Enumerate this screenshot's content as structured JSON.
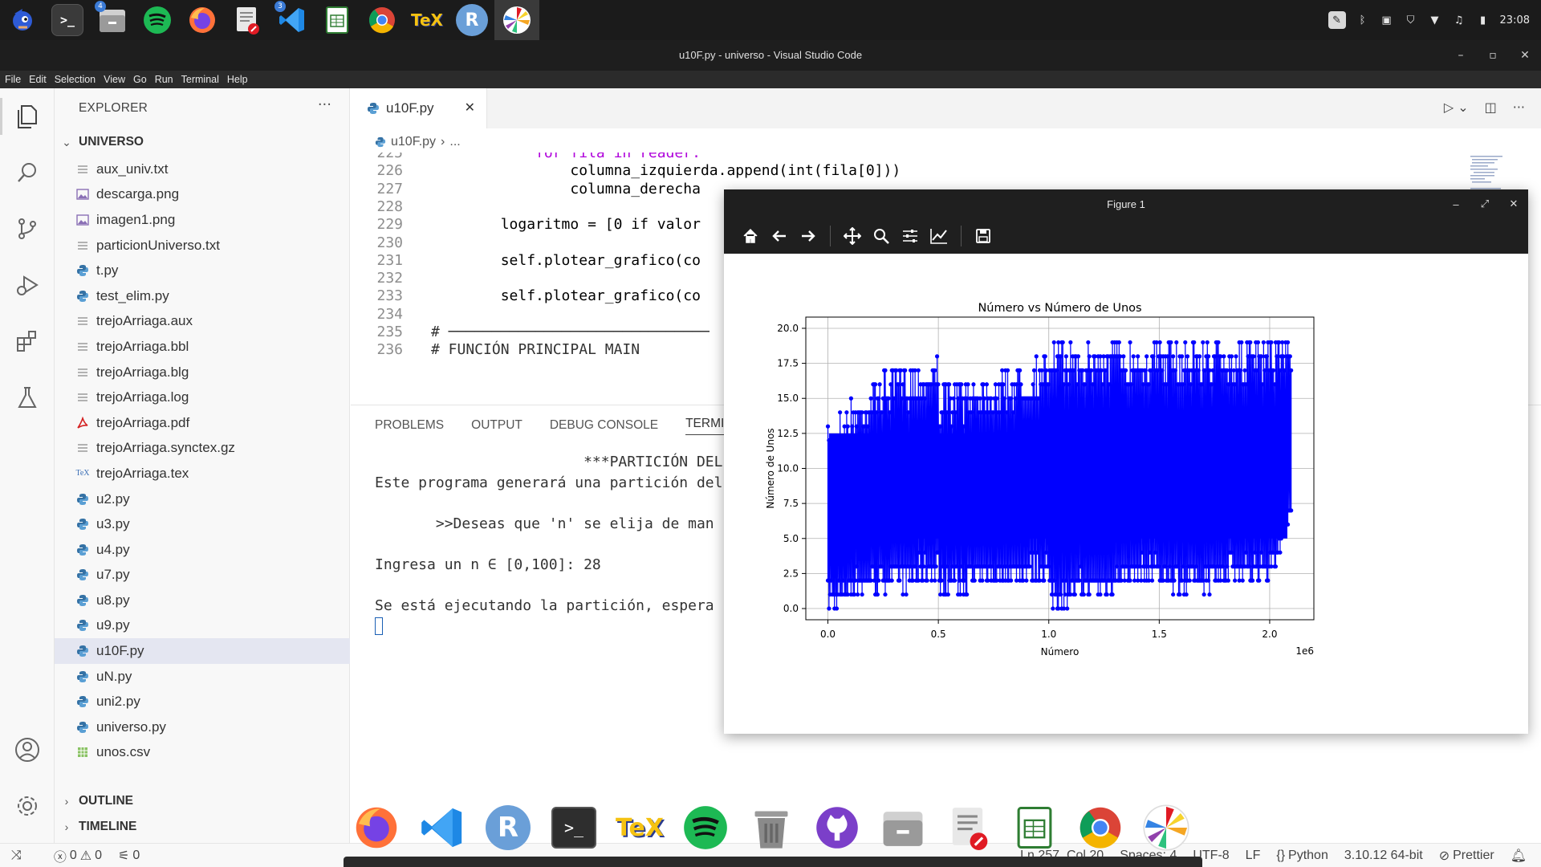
{
  "topbar": {
    "apps": [
      {
        "name": "sonic",
        "label": ""
      },
      {
        "name": "terminal",
        "label": ">_"
      },
      {
        "name": "files",
        "label": "",
        "badge": "4"
      },
      {
        "name": "spotify",
        "label": ""
      },
      {
        "name": "firefox",
        "label": ""
      },
      {
        "name": "text-editor",
        "label": ""
      },
      {
        "name": "vscode",
        "label": "",
        "badge": "3"
      },
      {
        "name": "spreadsheet",
        "label": ""
      },
      {
        "name": "chrome",
        "label": ""
      },
      {
        "name": "texmaker",
        "label": "TeX"
      },
      {
        "name": "r",
        "label": "R"
      },
      {
        "name": "pinwheel",
        "label": ""
      }
    ],
    "clock": "23:08"
  },
  "window": {
    "title": "u10F.py - universo - Visual Studio Code"
  },
  "menu": [
    "File",
    "Edit",
    "Selection",
    "View",
    "Go",
    "Run",
    "Terminal",
    "Help"
  ],
  "explorer": {
    "title": "EXPLORER",
    "folder": "UNIVERSO",
    "files": [
      {
        "name": "aux_univ.txt",
        "type": "txt"
      },
      {
        "name": "descarga.png",
        "type": "img"
      },
      {
        "name": "imagen1.png",
        "type": "img"
      },
      {
        "name": "particionUniverso.txt",
        "type": "txt"
      },
      {
        "name": "t.py",
        "type": "py"
      },
      {
        "name": "test_elim.py",
        "type": "py"
      },
      {
        "name": "trejoArriaga.aux",
        "type": "txt"
      },
      {
        "name": "trejoArriaga.bbl",
        "type": "txt"
      },
      {
        "name": "trejoArriaga.blg",
        "type": "txt"
      },
      {
        "name": "trejoArriaga.log",
        "type": "txt"
      },
      {
        "name": "trejoArriaga.pdf",
        "type": "pdf"
      },
      {
        "name": "trejoArriaga.synctex.gz",
        "type": "txt"
      },
      {
        "name": "trejoArriaga.tex",
        "type": "tex"
      },
      {
        "name": "u2.py",
        "type": "py"
      },
      {
        "name": "u3.py",
        "type": "py"
      },
      {
        "name": "u4.py",
        "type": "py"
      },
      {
        "name": "u7.py",
        "type": "py"
      },
      {
        "name": "u8.py",
        "type": "py"
      },
      {
        "name": "u9.py",
        "type": "py"
      },
      {
        "name": "u10F.py",
        "type": "py",
        "selected": true
      },
      {
        "name": "uN.py",
        "type": "py"
      },
      {
        "name": "uni2.py",
        "type": "py"
      },
      {
        "name": "universo.py",
        "type": "py"
      },
      {
        "name": "unos.csv",
        "type": "csv"
      }
    ],
    "outline": "OUTLINE",
    "timeline": "TIMELINE"
  },
  "editor": {
    "tab": "u10F.py",
    "breadcrumb_file": "u10F.py",
    "breadcrumb_rest": "...",
    "code": [
      {
        "n": "225",
        "t": "            for fila in reader:"
      },
      {
        "n": "226",
        "t": "                columna_izquierda.append(int(fila[0]))"
      },
      {
        "n": "227",
        "t": "                columna_derecha"
      },
      {
        "n": "228",
        "t": ""
      },
      {
        "n": "229",
        "t": "        logaritmo = [0 if valor"
      },
      {
        "n": "230",
        "t": ""
      },
      {
        "n": "231",
        "t": "        self.plotear_grafico(co"
      },
      {
        "n": "232",
        "t": ""
      },
      {
        "n": "233",
        "t": "        self.plotear_grafico(co"
      },
      {
        "n": "234",
        "t": ""
      },
      {
        "n": "235",
        "t": "# ──────────────────────────────"
      },
      {
        "n": "236",
        "t": "# FUNCIÓN PRINCIPAL MAIN"
      }
    ]
  },
  "panel": {
    "tabs": [
      "PROBLEMS",
      "OUTPUT",
      "DEBUG CONSOLE",
      "TERMINA"
    ],
    "terminal": [
      "                        ***PARTICIÓN DEL",
      "Este programa generará una partición del",
      "",
      "       >>Deseas que 'n' se elija de man",
      "",
      "Ingresa un n ∈ [0,100]: 28",
      "",
      "Se está ejecutando la partición, espera"
    ]
  },
  "statusbar": {
    "errors": "0",
    "warnings": "0",
    "ports": "0",
    "position": "Ln 257, Col 20",
    "spaces": "Spaces: 4",
    "encoding": "UTF-8",
    "eol": "LF",
    "language": "Python",
    "interpreter": "3.10.12 64-bit",
    "formatter": "Prettier"
  },
  "dock": [
    "firefox",
    "vscode",
    "r",
    "terminal",
    "texmaker",
    "spotify",
    "trash",
    "github",
    "files",
    "text-editor",
    "spreadsheet",
    "chrome",
    "pinwheel"
  ],
  "figure": {
    "window_title": "Figure 1",
    "toolbar": [
      "home-icon",
      "back-icon",
      "forward-icon",
      "pan-icon",
      "zoom-icon",
      "configure-icon",
      "axes-icon",
      "save-icon"
    ]
  },
  "chart_data": {
    "type": "line",
    "title": "Número vs Número de Unos",
    "xlabel": "Número",
    "ylabel": "Número de Unos",
    "x_offset_label": "1e6",
    "xlim": [
      -0.1,
      2.2
    ],
    "ylim": [
      -0.8,
      20.8
    ],
    "xticks": [
      0.0,
      0.5,
      1.0,
      1.5,
      2.0
    ],
    "xtick_labels": [
      "0.0",
      "0.5",
      "1.0",
      "1.5",
      "2.0"
    ],
    "yticks": [
      0.0,
      2.5,
      5.0,
      7.5,
      10.0,
      12.5,
      15.0,
      17.5,
      20.0
    ],
    "ytick_labels": [
      "0.0",
      "2.5",
      "5.0",
      "7.5",
      "10.0",
      "12.5",
      "15.0",
      "17.5",
      "20.0"
    ],
    "grid": true,
    "color": "#0000ff",
    "marker": "o",
    "x_range": [
      0.0,
      2.097152
    ],
    "x_scale": "1e6",
    "series": [
      {
        "x": [
          0.0,
          0.0625,
          0.125,
          0.25,
          0.5,
          0.5001,
          1.0,
          1.0001,
          1.5,
          1.5001,
          2.0,
          2.097152
        ],
        "ymin": [
          0.0,
          0.0,
          1.0,
          1.0,
          2.0,
          1.0,
          2.0,
          0.0,
          2.0,
          1.0,
          2.0,
          6.0
        ],
        "ymax": [
          13.0,
          14.0,
          15.0,
          17.0,
          18.0,
          16.0,
          18.0,
          19.0,
          19.0,
          19.0,
          19.0,
          20.0
        ]
      }
    ]
  }
}
